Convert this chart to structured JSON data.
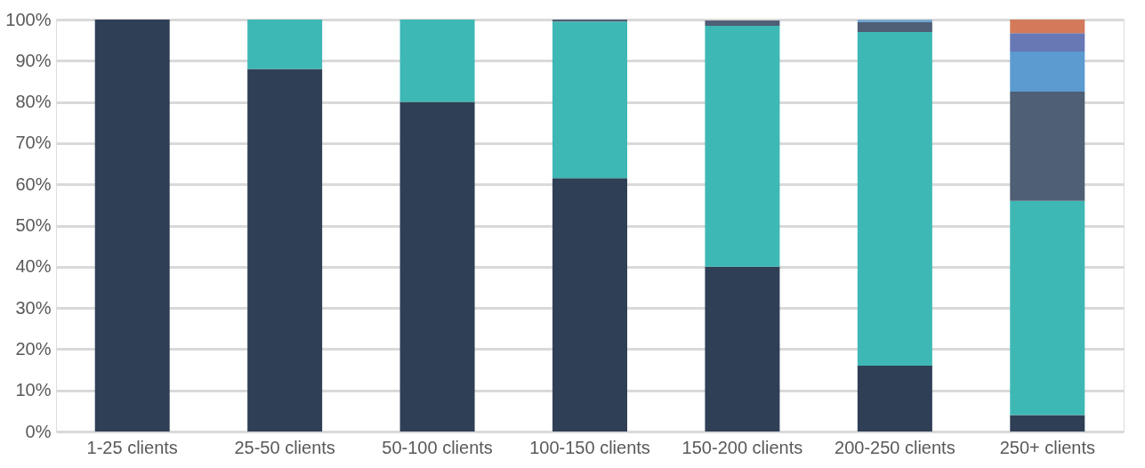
{
  "chart_data": {
    "type": "bar",
    "stacked": true,
    "categories": [
      "1-25 clients",
      "25-50 clients",
      "50-100 clients",
      "100-150 clients",
      "150-200 clients",
      "200-250 clients",
      "250+ clients"
    ],
    "series": [
      {
        "color": "#2f3f56",
        "values": [
          100,
          88,
          80,
          61.5,
          40,
          16,
          4
        ]
      },
      {
        "color": "#3eb8b4",
        "values": [
          0,
          12,
          20,
          38,
          58.5,
          81,
          52
        ]
      },
      {
        "color": "#4f5f75",
        "values": [
          0,
          0,
          0,
          0.5,
          1.3,
          2.4,
          26.5
        ]
      },
      {
        "color": "#5b9bd0",
        "values": [
          0,
          0,
          0,
          0,
          0,
          0.5,
          9.7
        ]
      },
      {
        "color": "#6778b4",
        "values": [
          0,
          0,
          0,
          0,
          0,
          0,
          4.5
        ]
      },
      {
        "color": "#d4795a",
        "values": [
          0,
          0,
          0,
          0,
          0,
          0,
          3.3
        ]
      }
    ],
    "ylim": [
      0,
      100
    ],
    "yticks": [
      {
        "value": 0,
        "label": "0%"
      },
      {
        "value": 10,
        "label": "10%"
      },
      {
        "value": 20,
        "label": "20%"
      },
      {
        "value": 30,
        "label": "30%"
      },
      {
        "value": 40,
        "label": "40%"
      },
      {
        "value": 50,
        "label": "50%"
      },
      {
        "value": 60,
        "label": "60%"
      },
      {
        "value": 70,
        "label": "70%"
      },
      {
        "value": 80,
        "label": "80%"
      },
      {
        "value": 90,
        "label": "90%"
      },
      {
        "value": 100,
        "label": "100%"
      }
    ],
    "grid": "y",
    "legend": false
  }
}
